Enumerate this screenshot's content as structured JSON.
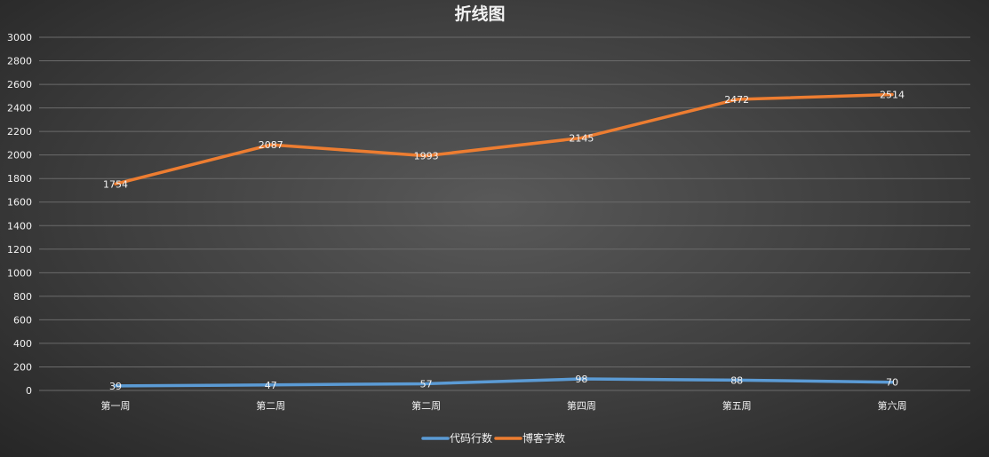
{
  "chart_data": {
    "type": "line",
    "title": "折线图",
    "categories": [
      "第一周",
      "第二周",
      "第二周",
      "第四周",
      "第五周",
      "第六周"
    ],
    "series": [
      {
        "name": "代码行数",
        "values": [
          39,
          47,
          57,
          98,
          88,
          70
        ],
        "color": "#5b9bd5"
      },
      {
        "name": "博客字数",
        "values": [
          1754,
          2087,
          1993,
          2145,
          2472,
          2514
        ],
        "color": "#ed7d31"
      }
    ],
    "ylim": [
      0,
      3000
    ],
    "yticks": [
      0,
      200,
      400,
      600,
      800,
      1000,
      1200,
      1400,
      1600,
      1800,
      2000,
      2200,
      2400,
      2600,
      2800,
      3000
    ],
    "grid": true,
    "legend": "bottom",
    "data_labels": true,
    "xlabel": "",
    "ylabel": ""
  }
}
